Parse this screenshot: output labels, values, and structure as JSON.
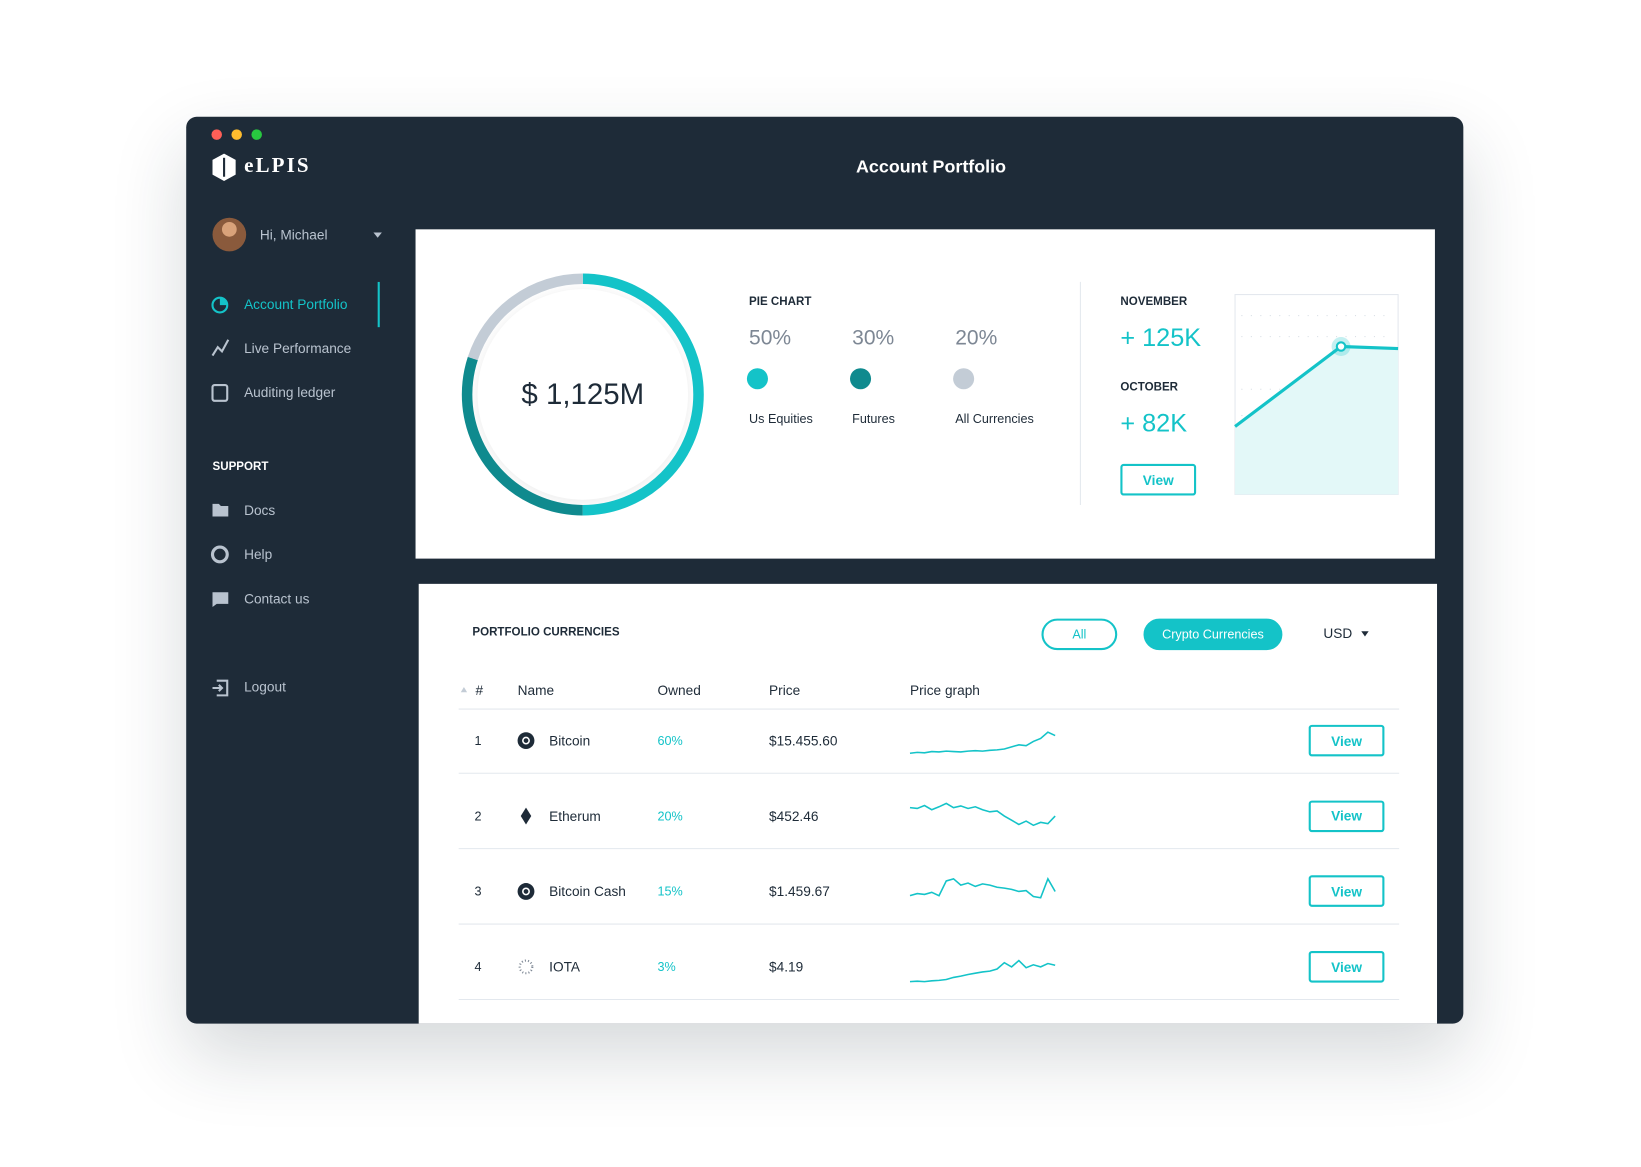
{
  "window": {
    "title": "Account Portfolio",
    "brand": "eLPIS"
  },
  "user": {
    "greeting": "Hi, Michael"
  },
  "nav": {
    "items": [
      "Account Portfolio",
      "Live Performance",
      "Auditing ledger"
    ],
    "support_heading": "SUPPORT",
    "support_items": [
      "Docs",
      "Help",
      "Contact us"
    ],
    "logout": "Logout"
  },
  "summary": {
    "total": "$ 1,125M",
    "pie": {
      "type": "pie",
      "title": "PIE CHART",
      "categories": [
        "Us Equities",
        "Futures",
        "All Currencies"
      ],
      "values": [
        50,
        30,
        20
      ],
      "value_labels": [
        "50%",
        "30%",
        "20%"
      ],
      "colors": [
        "#14c3c8",
        "#0f8a8e",
        "#c3ccd6"
      ]
    },
    "months": [
      {
        "name": "NOVEMBER",
        "change": "+ 125K"
      },
      {
        "name": "OCTOBER",
        "change": "+ 82K"
      }
    ],
    "button": "View",
    "trend": {
      "type": "area",
      "values": [
        34,
        74,
        73
      ],
      "ylim": [
        0,
        100
      ],
      "color": "#14c3c8"
    }
  },
  "table": {
    "title": "PORTFOLIO CURRENCIES",
    "filters": [
      "All",
      "Crypto Currencies"
    ],
    "currency": "USD",
    "columns": [
      "#",
      "Name",
      "Owned",
      "Price",
      "Price graph"
    ],
    "action": "View",
    "graph_ylim": [
      0,
      100
    ],
    "rows": [
      {
        "rank": 1,
        "name": "Bitcoin",
        "owned": "60%",
        "price": "$15.455.60",
        "graph": [
          10,
          12,
          11,
          14,
          13,
          15,
          14,
          13,
          15,
          16,
          15,
          17,
          18,
          20,
          25,
          30,
          28,
          38,
          45,
          60,
          52
        ]
      },
      {
        "rank": 2,
        "name": "Etherum",
        "owned": "20%",
        "price": "$452.46",
        "graph": [
          60,
          58,
          65,
          55,
          62,
          70,
          60,
          64,
          58,
          62,
          55,
          50,
          52,
          40,
          30,
          20,
          28,
          18,
          25,
          22,
          40
        ]
      },
      {
        "rank": 3,
        "name": "Bitcoin Cash",
        "owned": "15%",
        "price": "$1.459.67",
        "graph": [
          30,
          35,
          33,
          38,
          30,
          65,
          70,
          55,
          60,
          52,
          58,
          55,
          50,
          48,
          45,
          40,
          42,
          28,
          25,
          70,
          40
        ]
      },
      {
        "rank": 4,
        "name": "IOTA",
        "owned": "3%",
        "price": "$4.19",
        "graph": [
          5,
          6,
          5,
          7,
          8,
          10,
          15,
          18,
          22,
          25,
          28,
          30,
          35,
          50,
          40,
          55,
          38,
          45,
          40,
          48,
          44
        ]
      }
    ]
  }
}
